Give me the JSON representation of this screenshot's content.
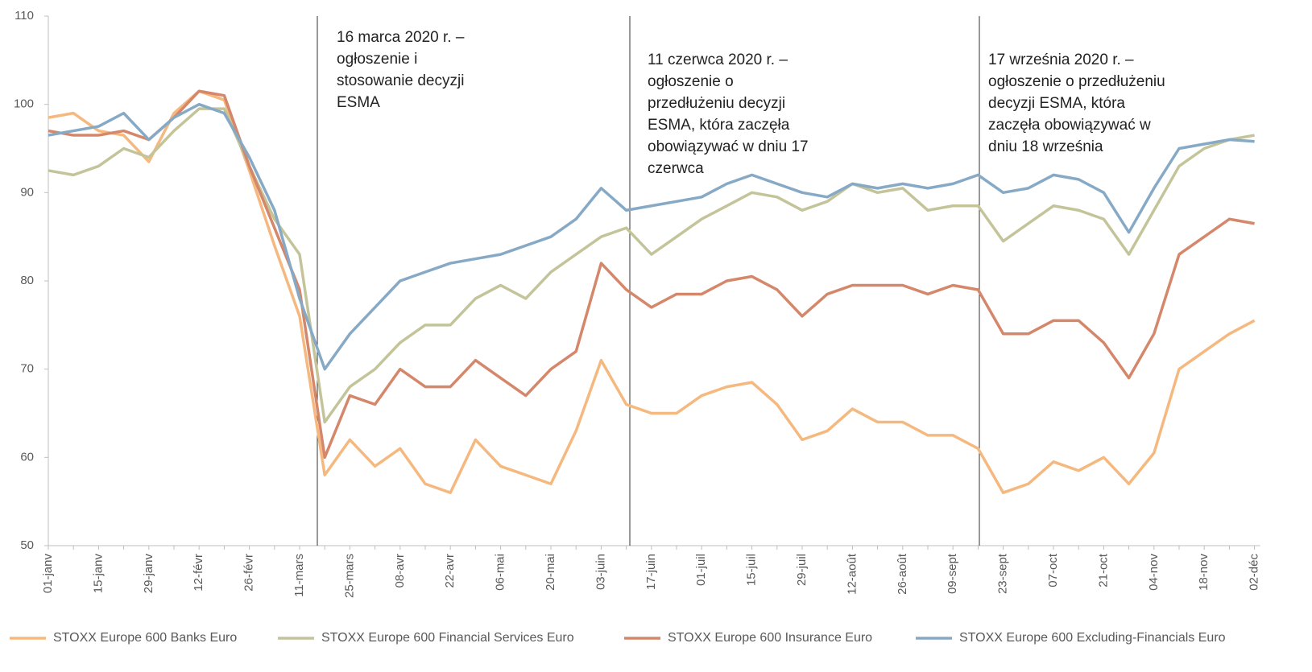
{
  "chart_data": {
    "type": "line",
    "categories": [
      "01-janv",
      null,
      "15-janv",
      null,
      "29-janv",
      null,
      "12-févr",
      null,
      "26-févr",
      null,
      "11-mars",
      null,
      "25-mars",
      null,
      "08-avr",
      null,
      "22-avr",
      null,
      "06-mai",
      null,
      "20-mai",
      null,
      "03-juin",
      null,
      "17-juin",
      null,
      "01-juil",
      null,
      "15-juil",
      null,
      "29-juil",
      null,
      "12-août",
      null,
      "26-août",
      null,
      "09-sept",
      null,
      "23-sept",
      null,
      "07-oct",
      null,
      "21-oct",
      null,
      "04-nov",
      null,
      "18-nov",
      null,
      "02-déc"
    ],
    "series": [
      {
        "name": "STOXX Europe 600 Banks Euro",
        "color": "#f5b87e",
        "values": [
          98.5,
          99,
          97,
          96.5,
          93.5,
          99,
          101.5,
          100.5,
          92.5,
          84,
          76,
          58,
          62,
          59,
          61,
          57,
          56,
          62,
          59,
          58,
          57,
          63,
          71,
          66,
          65,
          65,
          67,
          68,
          68.5,
          66,
          62,
          63,
          65.5,
          64,
          64,
          62.5,
          62.5,
          61,
          56,
          57,
          59.5,
          58.5,
          60,
          57,
          60.5,
          70,
          72,
          74,
          75.5
        ]
      },
      {
        "name": "STOXX Europe 600 Financial Services Euro",
        "color": "#c4c49a",
        "values": [
          92.5,
          92,
          93,
          95,
          94,
          97,
          99.5,
          99.5,
          93,
          87,
          83,
          64,
          68,
          70,
          73,
          75,
          75,
          78,
          79.5,
          78,
          81,
          83,
          85,
          86,
          83,
          85,
          87,
          88.5,
          90,
          89.5,
          88,
          89,
          91,
          90,
          90.5,
          88,
          88.5,
          88.5,
          84.5,
          86.5,
          88.5,
          88,
          87,
          83,
          88,
          93,
          95,
          96,
          96.5
        ]
      },
      {
        "name": "STOXX Europe 600 Insurance Euro",
        "color": "#d4876a",
        "values": [
          97,
          96.5,
          96.5,
          97,
          96,
          98.5,
          101.5,
          101,
          93,
          86,
          79,
          60,
          67,
          66,
          70,
          68,
          68,
          71,
          69,
          67,
          70,
          72,
          82,
          79,
          77,
          78.5,
          78.5,
          80,
          80.5,
          79,
          76,
          78.5,
          79.5,
          79.5,
          79.5,
          78.5,
          79.5,
          79,
          74,
          74,
          75.5,
          75.5,
          73,
          69,
          74,
          83,
          85,
          87,
          86.5
        ]
      },
      {
        "name": "STOXX Europe 600 Excluding-Financials Euro",
        "color": "#86a9c6",
        "values": [
          96.5,
          97,
          97.5,
          99,
          96,
          98.5,
          100,
          99,
          94,
          88,
          78,
          70,
          74,
          77,
          80,
          81,
          82,
          82.5,
          83,
          84,
          85,
          87,
          90.5,
          88,
          88.5,
          89,
          89.5,
          91,
          92,
          91,
          90,
          89.5,
          91,
          90.5,
          91,
          90.5,
          91,
          92,
          90,
          90.5,
          92,
          91.5,
          90,
          85.5,
          90.5,
          95,
          95.5,
          96,
          95.8
        ]
      }
    ],
    "ylim": [
      50,
      110
    ],
    "yticks": [
      50,
      60,
      70,
      80,
      90,
      100,
      110
    ],
    "legend": "bottom",
    "annotations": [
      [
        "16 marca 2020 r. –",
        "ogłoszenie i",
        "stosowanie decyzji",
        "ESMA"
      ],
      [
        "11 czerwca 2020 r. –",
        "ogłoszenie o",
        "przedłużeniu decyzji",
        "ESMA, która zaczęła",
        "obowiązywać w dniu 17",
        "czerwca"
      ],
      [
        "17 września 2020 r. –",
        "ogłoszenie o przedłużeniu",
        "decyzji ESMA, która",
        "zaczęła obowiązywać w",
        "dniu 18 września"
      ]
    ]
  }
}
